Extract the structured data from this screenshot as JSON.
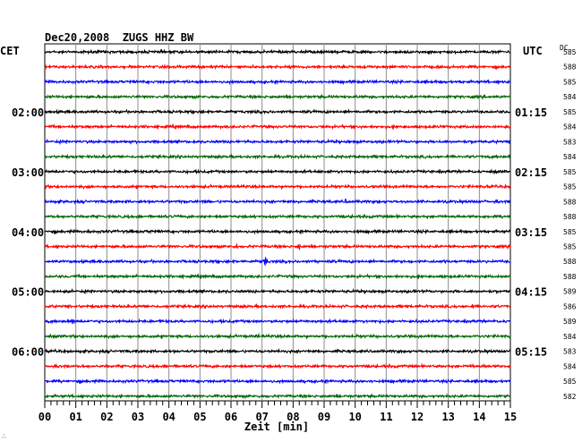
{
  "header": {
    "title": "Dec20,2008  ZUGS HHZ BW",
    "left_tz": "CET",
    "right_tz": "UTC",
    "dc_label": "DC"
  },
  "footer": {
    "xlabel": "Zeit [min]",
    "corner_mark": "∴"
  },
  "chart_data": {
    "type": "line",
    "title": "Dec20,2008  ZUGS HHZ BW",
    "xlabel": "Zeit [min]",
    "ylabel": "",
    "xlim": [
      0,
      15
    ],
    "x_ticks": [
      "00",
      "01",
      "02",
      "03",
      "04",
      "05",
      "06",
      "07",
      "08",
      "09",
      "10",
      "11",
      "12",
      "13",
      "14",
      "15"
    ],
    "grid": true,
    "trace_colors": [
      "#000000",
      "#ff0000",
      "#0000ff",
      "#006400"
    ],
    "left_hour_labels": [
      {
        "trace": 4,
        "label": "02:00"
      },
      {
        "trace": 8,
        "label": "03:00"
      },
      {
        "trace": 12,
        "label": "04:00"
      },
      {
        "trace": 16,
        "label": "05:00"
      },
      {
        "trace": 20,
        "label": "06:00"
      }
    ],
    "right_hour_labels": [
      {
        "trace": 4,
        "label": "01:15"
      },
      {
        "trace": 8,
        "label": "02:15"
      },
      {
        "trace": 12,
        "label": "03:15"
      },
      {
        "trace": 16,
        "label": "04:15"
      },
      {
        "trace": 20,
        "label": "05:15"
      }
    ],
    "dc_offsets": [
      "585",
      "588",
      "585",
      "584",
      "585",
      "584",
      "583",
      "584",
      "585",
      "585",
      "588",
      "588",
      "585",
      "585",
      "588",
      "588",
      "589",
      "586",
      "589",
      "584",
      "583",
      "584",
      "585",
      "582"
    ],
    "events": [
      {
        "trace": 10,
        "minute": 9.7,
        "amp": 2.5
      },
      {
        "trace": 10,
        "minute": 10.7,
        "amp": 3
      },
      {
        "trace": 12,
        "minute": 1.4,
        "amp": 3
      },
      {
        "trace": 12,
        "minute": 3.4,
        "amp": 2
      },
      {
        "trace": 13,
        "minute": 6.2,
        "amp": 4
      },
      {
        "trace": 13,
        "minute": 8.2,
        "amp": 4
      },
      {
        "trace": 14,
        "minute": 7.1,
        "amp": 7
      },
      {
        "trace": 18,
        "minute": 0.9,
        "amp": 3
      },
      {
        "trace": 17,
        "minute": 13.8,
        "amp": 2.5
      },
      {
        "trace": 19,
        "minute": 6.9,
        "amp": 2.5
      },
      {
        "trace": 21,
        "minute": 13.8,
        "amp": 2
      },
      {
        "trace": 21,
        "minute": 14.2,
        "amp": 2
      }
    ]
  }
}
